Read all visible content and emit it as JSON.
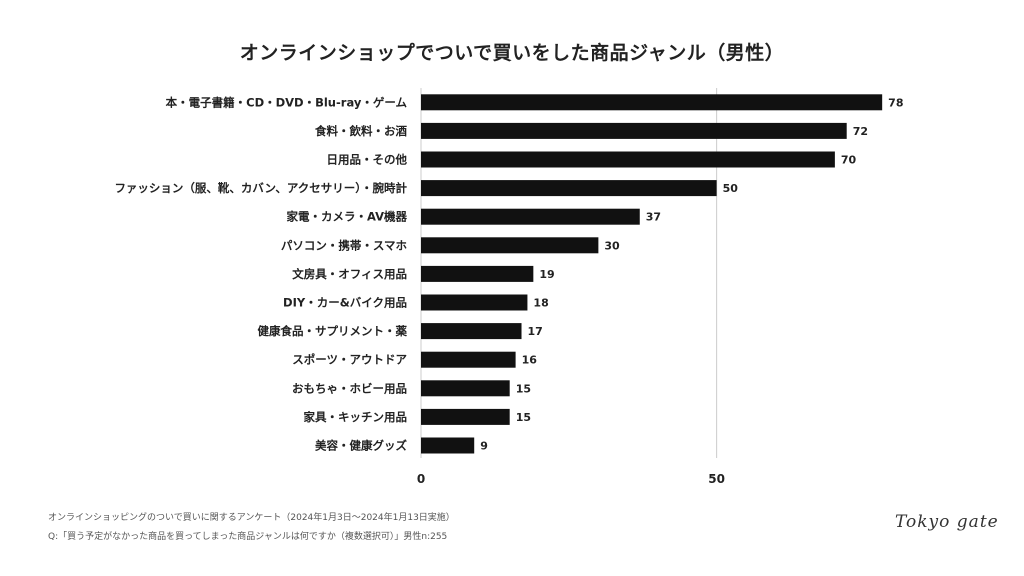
{
  "title": "オンラインショップでついで買いをした商品ジャンル（男性）",
  "chart_data": {
    "type": "bar",
    "orientation": "horizontal",
    "categories": [
      "本・電子書籍・CD・DVD・Blu-ray・ゲーム",
      "食料・飲料・お酒",
      "日用品・その他",
      "ファッション（服、靴、カバン、アクセサリー）・腕時計",
      "家電・カメラ・AV機器",
      "パソコン・携帯・スマホ",
      "文房具・オフィス用品",
      "DIY・カー&バイク用品",
      "健康食品・サプリメント・薬",
      "スポーツ・アウトドア",
      "おもちゃ・ホビー用品",
      "家具・キッチン用品",
      "美容・健康グッズ"
    ],
    "values": [
      78,
      72,
      70,
      50,
      37,
      30,
      19,
      18,
      17,
      16,
      15,
      15,
      9
    ],
    "xlim": [
      0,
      80
    ],
    "xticks": [
      0,
      50
    ],
    "grid": "vertical line at 50",
    "bar_color": "#111111"
  },
  "footnotes": {
    "line1": "オンラインショッピングのついで買いに関するアンケート（2024年1月3日〜2024年1月13日実施）",
    "line2": "Q:「買う予定がなかった商品を買ってしまった商品ジャンルは何ですか（複数選択可）」男性n:255"
  },
  "logo": "Tokyo gate"
}
